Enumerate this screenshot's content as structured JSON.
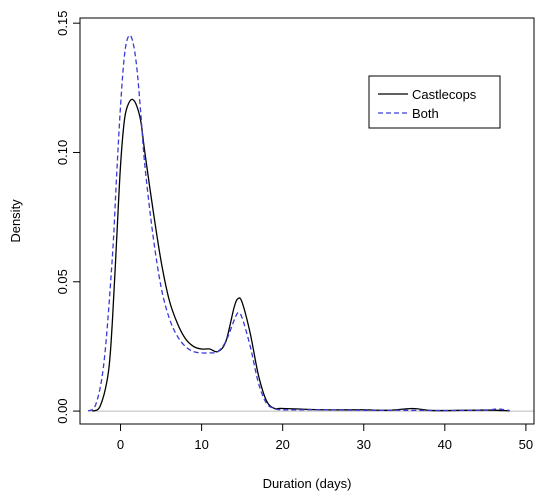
{
  "chart_data": {
    "type": "line",
    "title": "",
    "xlabel": "Duration (days)",
    "ylabel": "Density",
    "xlim": [
      -5,
      51
    ],
    "ylim": [
      -0.005,
      0.152
    ],
    "x_ticks": [
      0,
      10,
      20,
      30,
      40,
      50
    ],
    "x_tick_labels": [
      "0",
      "10",
      "20",
      "30",
      "40",
      "50"
    ],
    "y_ticks": [
      0.0,
      0.05,
      0.1,
      0.15
    ],
    "y_tick_labels": [
      "0.00",
      "0.05",
      "0.10",
      "0.15"
    ],
    "grid": false,
    "legend_position": "top-right",
    "baseline_y": 0,
    "series": [
      {
        "name": "Castlecops",
        "color": "#000000",
        "dash": "solid",
        "x": [
          -3.5,
          -2.5,
          -1.5,
          -1.0,
          -0.5,
          0.0,
          0.5,
          1.0,
          1.5,
          2.0,
          2.5,
          3.0,
          4.0,
          5.0,
          6.0,
          7.0,
          8.0,
          9.0,
          10.0,
          11.0,
          12.0,
          13.0,
          14.0,
          14.5,
          15.0,
          16.0,
          17.0,
          18.0,
          19.0,
          20.0,
          25.0,
          30.0,
          33.0,
          36.0,
          38.0,
          40.0,
          45.0,
          48.0
        ],
        "y": [
          0.0,
          0.002,
          0.015,
          0.035,
          0.065,
          0.095,
          0.113,
          0.119,
          0.1205,
          0.118,
          0.112,
          0.1,
          0.078,
          0.058,
          0.043,
          0.034,
          0.028,
          0.025,
          0.024,
          0.024,
          0.023,
          0.027,
          0.04,
          0.0435,
          0.042,
          0.03,
          0.014,
          0.004,
          0.001,
          0.001,
          0.0005,
          0.0005,
          0.0003,
          0.001,
          0.0003,
          0.0002,
          0.0004,
          0.0001
        ]
      },
      {
        "name": "Both",
        "color": "#3a3ad8",
        "dash": "dashed",
        "x": [
          -4.0,
          -3.0,
          -2.0,
          -1.0,
          -0.5,
          0.0,
          0.5,
          1.0,
          1.5,
          2.0,
          2.5,
          3.0,
          4.0,
          5.0,
          6.0,
          7.0,
          8.0,
          9.0,
          10.0,
          11.0,
          12.0,
          13.0,
          14.0,
          14.5,
          15.0,
          16.0,
          17.0,
          18.0,
          19.0,
          20.0,
          25.0,
          30.0,
          35.0,
          40.0,
          45.0,
          46.5,
          48.0
        ],
        "y": [
          0.0,
          0.003,
          0.02,
          0.06,
          0.09,
          0.118,
          0.138,
          0.145,
          0.143,
          0.133,
          0.115,
          0.095,
          0.068,
          0.048,
          0.036,
          0.029,
          0.025,
          0.023,
          0.0225,
          0.0225,
          0.023,
          0.027,
          0.035,
          0.038,
          0.036,
          0.025,
          0.011,
          0.003,
          0.001,
          0.0005,
          0.0005,
          0.0003,
          0.0003,
          0.0002,
          0.0004,
          0.0008,
          0.0002
        ]
      }
    ]
  }
}
